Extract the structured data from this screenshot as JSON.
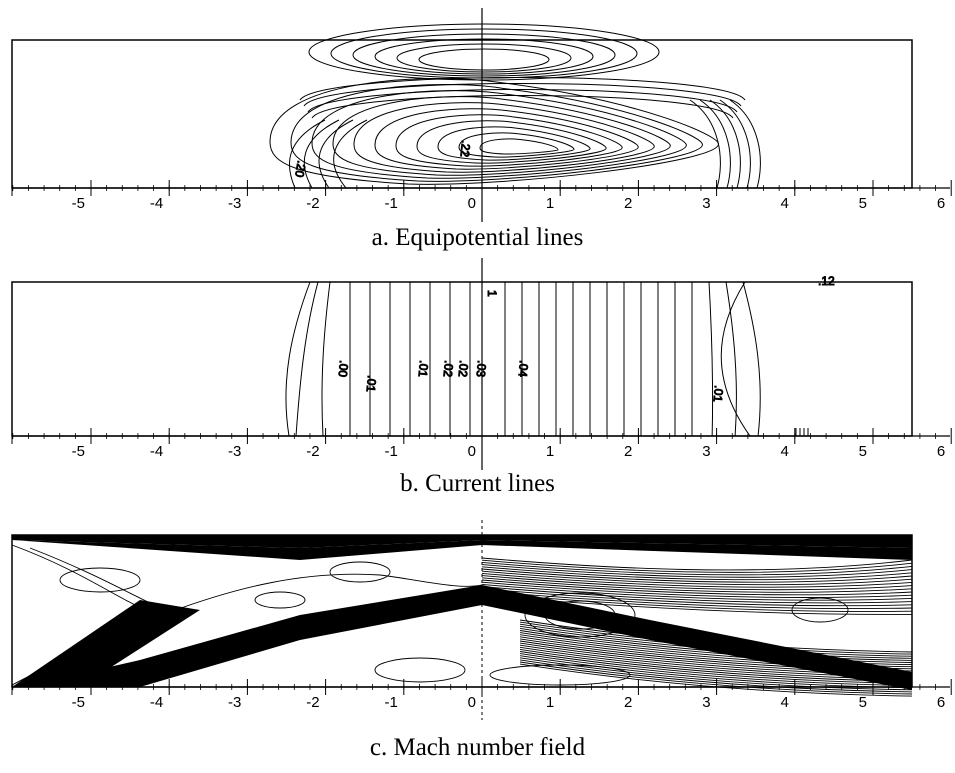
{
  "panels": [
    {
      "id": "a",
      "caption": "a.  Equipotential lines",
      "ticks": [
        "-5",
        "-4",
        "-3",
        "-2",
        "-1",
        "0",
        "1",
        "2",
        "3",
        "4",
        "5",
        "6"
      ],
      "contour_labels": [
        ".20",
        ".22"
      ]
    },
    {
      "id": "b",
      "caption": "b.  Current lines",
      "ticks": [
        "-5",
        "-4",
        "-3",
        "-2",
        "-1",
        "0",
        "1",
        "2",
        "3",
        "4",
        "5",
        "6"
      ],
      "contour_labels": [
        ".00",
        ".01",
        ".01",
        ".02",
        ".02",
        ".03",
        ".04",
        ".01",
        ".12",
        "1"
      ]
    },
    {
      "id": "c",
      "caption": "c.  Mach number field",
      "ticks": [
        "-5",
        "-4",
        "-3",
        "-2",
        "-1",
        "0",
        "1",
        "2",
        "3",
        "4",
        "5",
        "6"
      ],
      "contour_labels": []
    }
  ]
}
